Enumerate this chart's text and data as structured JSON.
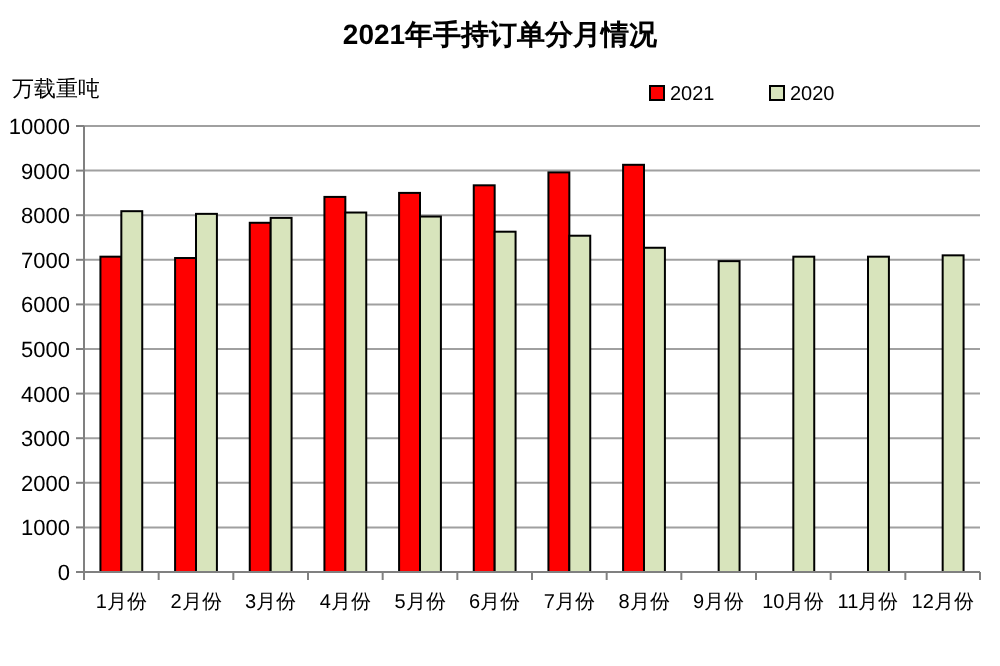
{
  "chart_data": {
    "type": "bar",
    "title": "2021年手持订单分月情况",
    "ylabel": "万载重吨",
    "categories": [
      "1月份",
      "2月份",
      "3月份",
      "4月份",
      "5月份",
      "6月份",
      "7月份",
      "8月份",
      "9月份",
      "10月份",
      "11月份",
      "12月份"
    ],
    "series": [
      {
        "name": "2021",
        "color": "#ff0000",
        "values": [
          7070,
          7040,
          7830,
          8410,
          8500,
          8670,
          8960,
          9130,
          null,
          null,
          null,
          null
        ]
      },
      {
        "name": "2020",
        "color": "#d8e4bc",
        "values": [
          8090,
          8030,
          7940,
          8060,
          7970,
          7630,
          7540,
          7270,
          6970,
          7070,
          7070,
          7100
        ]
      }
    ],
    "ylim": [
      0,
      10000
    ],
    "yticks": [
      0,
      1000,
      2000,
      3000,
      4000,
      5000,
      6000,
      7000,
      8000,
      9000,
      10000
    ],
    "grid": "y",
    "legend": "top right"
  }
}
